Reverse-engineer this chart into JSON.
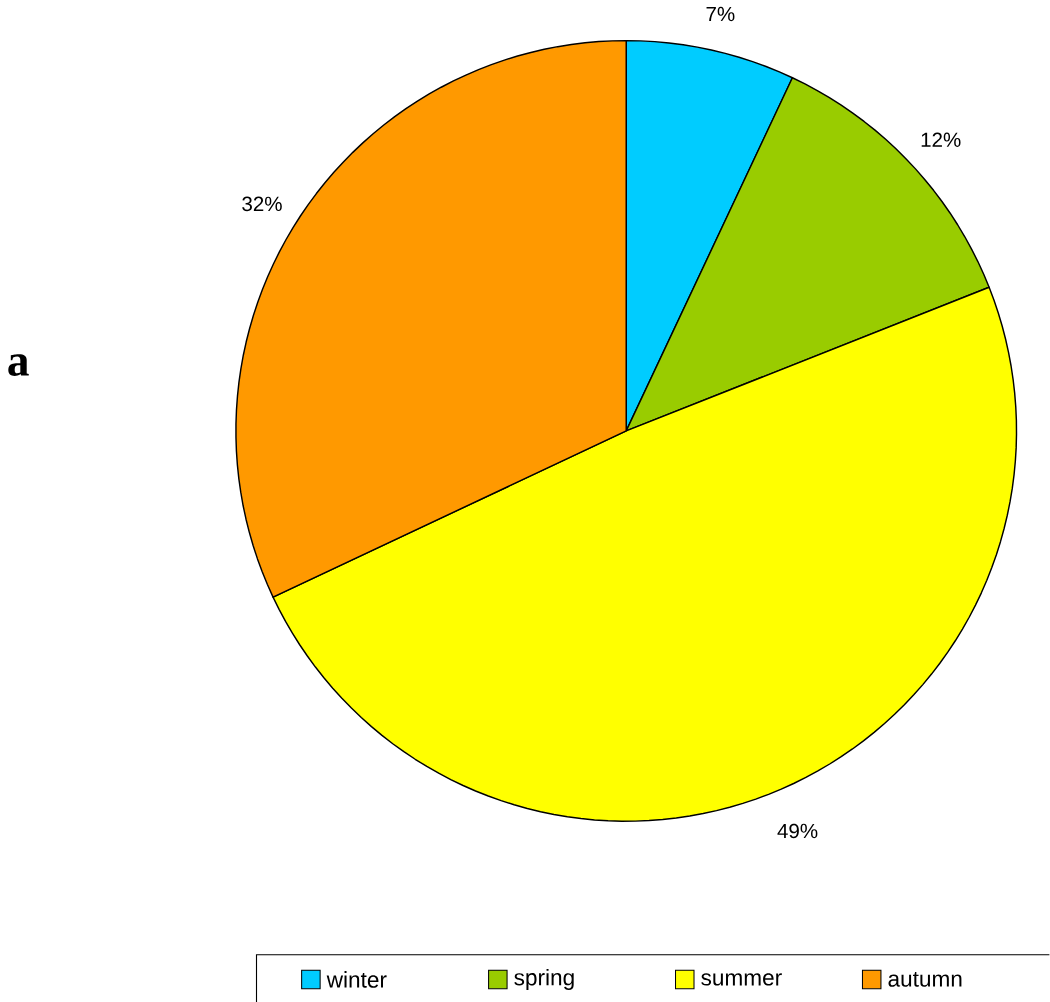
{
  "chart_data": {
    "type": "pie",
    "categories": [
      "winter",
      "spring",
      "summer",
      "autumn"
    ],
    "values": [
      7,
      12,
      49,
      32
    ],
    "colors": [
      "#00ccff",
      "#99cc00",
      "#ffff00",
      "#ff9900"
    ],
    "value_labels": [
      "7%",
      "12%",
      "49%",
      "32%"
    ],
    "legend": "bottom",
    "annotations": [
      "a"
    ]
  }
}
